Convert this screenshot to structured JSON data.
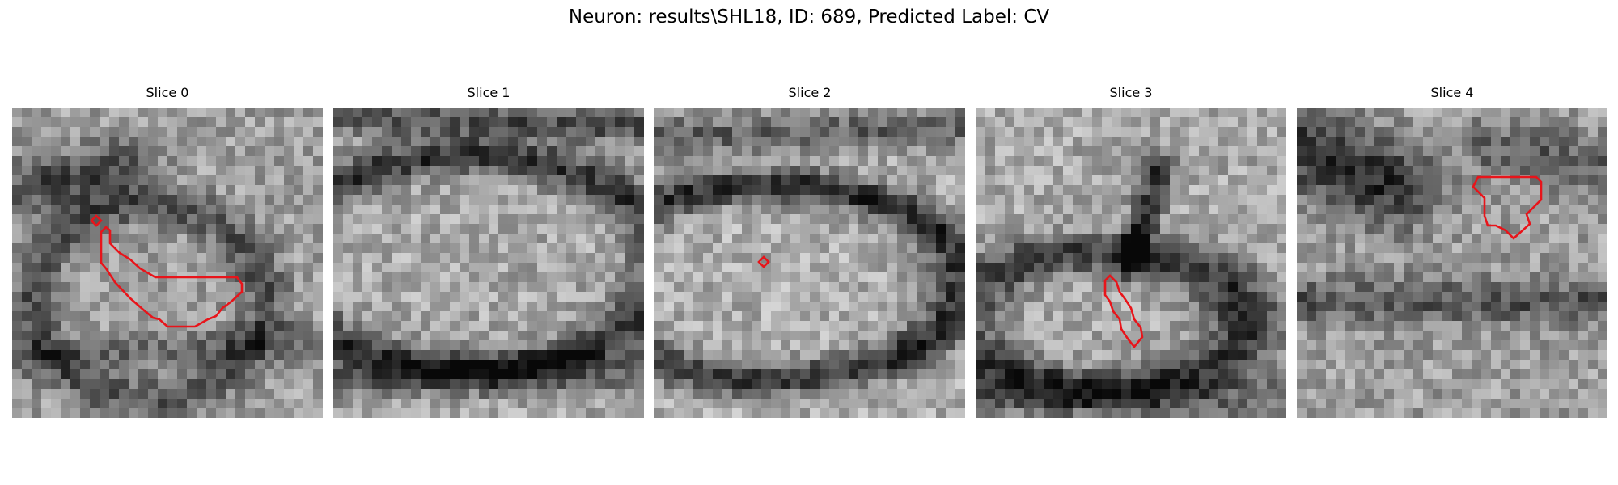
{
  "figure": {
    "title": "Neuron: results\\SHL18, ID: 689, Predicted Label: CV"
  },
  "colors": {
    "background": "#ffffff",
    "contour": "#e8141a"
  },
  "panels": [
    {
      "title": "Slice 0"
    },
    {
      "title": "Slice 1"
    },
    {
      "title": "Slice 2"
    },
    {
      "title": "Slice 3"
    },
    {
      "title": "Slice 4"
    }
  ]
}
